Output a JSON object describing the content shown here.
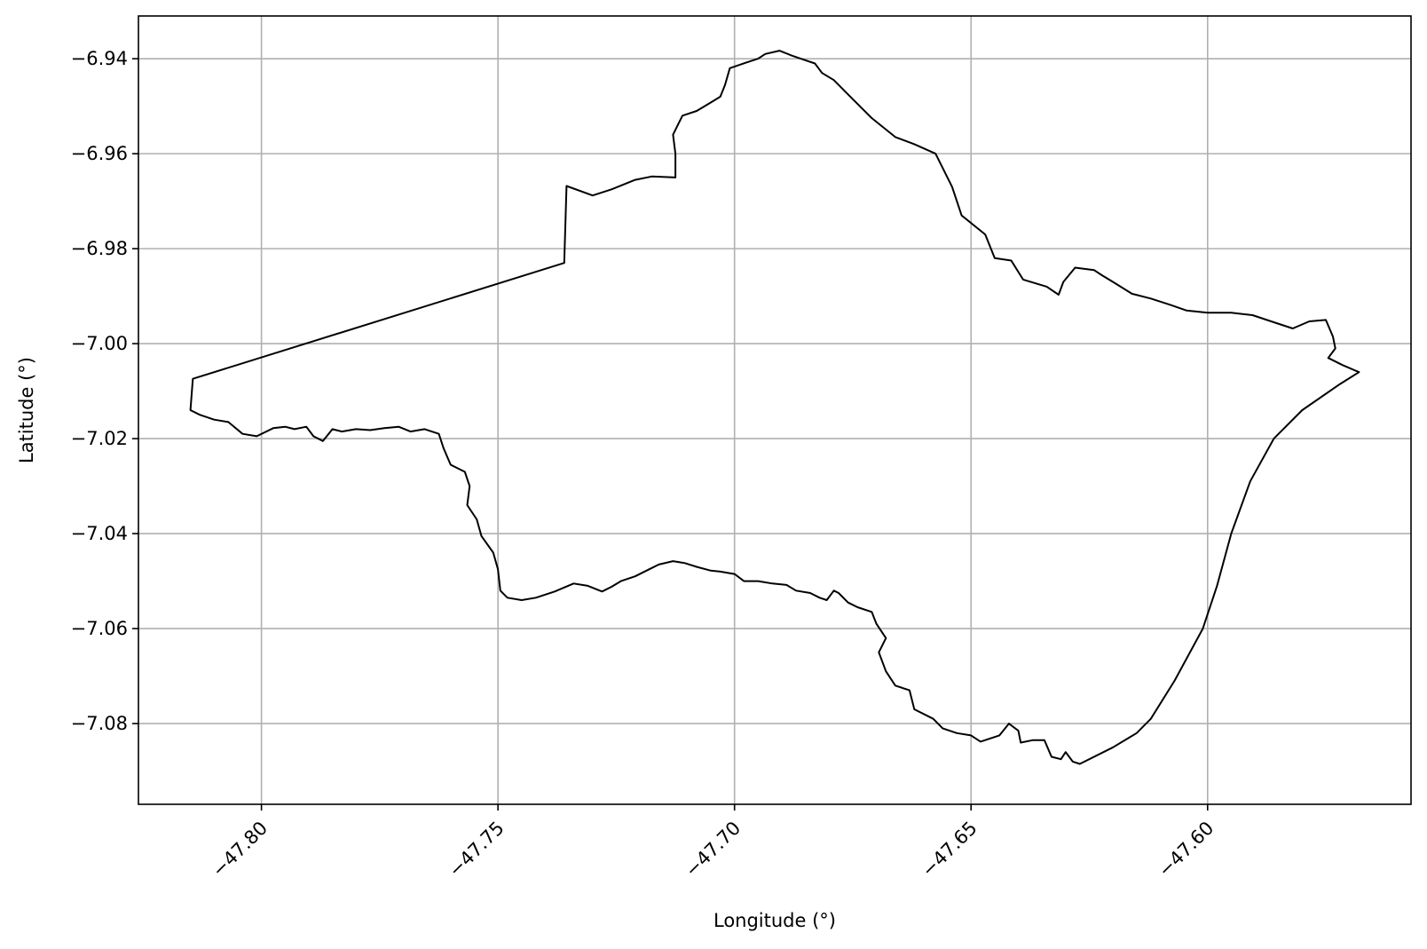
{
  "chart_data": {
    "type": "line",
    "xlabel": "Longitude (°)",
    "ylabel": "Latitude (°)",
    "xlim": [
      -47.826,
      -47.557
    ],
    "ylim": [
      -7.097,
      -6.931
    ],
    "x_ticks": [
      -47.8,
      -47.75,
      -47.7,
      -47.65,
      -47.6
    ],
    "x_tick_labels": [
      "−47.80",
      "−47.75",
      "−47.70",
      "−47.65",
      "−47.60"
    ],
    "y_ticks": [
      -6.94,
      -6.96,
      -6.98,
      -7.0,
      -7.02,
      -7.04,
      -7.06,
      -7.08
    ],
    "y_tick_labels": [
      "−6.94",
      "−6.96",
      "−6.98",
      "−7.00",
      "−7.02",
      "−7.04",
      "−7.06",
      "−7.08"
    ],
    "grid": true,
    "line_color": "#000000",
    "grid_color": "#b0b0b0",
    "boundary": [
      [
        -47.8145,
        -7.0074
      ],
      [
        -47.736,
        -6.983
      ],
      [
        -47.7355,
        -6.9668
      ],
      [
        -47.73,
        -6.9688
      ],
      [
        -47.726,
        -6.9675
      ],
      [
        -47.721,
        -6.9655
      ],
      [
        -47.7175,
        -6.9648
      ],
      [
        -47.7125,
        -6.965
      ],
      [
        -47.7125,
        -6.96
      ],
      [
        -47.713,
        -6.956
      ],
      [
        -47.711,
        -6.952
      ],
      [
        -47.708,
        -6.951
      ],
      [
        -47.7055,
        -6.9495
      ],
      [
        -47.703,
        -6.948
      ],
      [
        -47.702,
        -6.9455
      ],
      [
        -47.701,
        -6.942
      ],
      [
        -47.6975,
        -6.9408
      ],
      [
        -47.695,
        -6.94
      ],
      [
        -47.6935,
        -6.939
      ],
      [
        -47.6905,
        -6.9383
      ],
      [
        -47.688,
        -6.9393
      ],
      [
        -47.686,
        -6.94
      ],
      [
        -47.683,
        -6.941
      ],
      [
        -47.6815,
        -6.943
      ],
      [
        -47.679,
        -6.9445
      ],
      [
        -47.676,
        -6.9475
      ],
      [
        -47.671,
        -6.9525
      ],
      [
        -47.666,
        -6.9565
      ],
      [
        -47.662,
        -6.958
      ],
      [
        -47.6575,
        -6.96
      ],
      [
        -47.654,
        -6.967
      ],
      [
        -47.652,
        -6.973
      ],
      [
        -47.647,
        -6.977
      ],
      [
        -47.645,
        -6.982
      ],
      [
        -47.6415,
        -6.9825
      ],
      [
        -47.639,
        -6.9865
      ],
      [
        -47.634,
        -6.988
      ],
      [
        -47.6315,
        -6.9897
      ],
      [
        -47.6305,
        -6.987
      ],
      [
        -47.628,
        -6.984
      ],
      [
        -47.624,
        -6.9845
      ],
      [
        -47.6225,
        -6.9855
      ],
      [
        -47.62,
        -6.987
      ],
      [
        -47.616,
        -6.9895
      ],
      [
        -47.612,
        -6.9905
      ],
      [
        -47.608,
        -6.9918
      ],
      [
        -47.6045,
        -6.993
      ],
      [
        -47.6,
        -6.9935
      ],
      [
        -47.595,
        -6.9935
      ],
      [
        -47.5905,
        -6.994
      ],
      [
        -47.586,
        -6.9955
      ],
      [
        -47.582,
        -6.9968
      ],
      [
        -47.5785,
        -6.9953
      ],
      [
        -47.575,
        -6.995
      ],
      [
        -47.5735,
        -6.9985
      ],
      [
        -47.573,
        -7.001
      ],
      [
        -47.5745,
        -7.003
      ],
      [
        -47.5715,
        -7.0045
      ],
      [
        -47.568,
        -7.006
      ],
      [
        -47.572,
        -7.0085
      ],
      [
        -47.58,
        -7.014
      ],
      [
        -47.586,
        -7.02
      ],
      [
        -47.591,
        -7.029
      ],
      [
        -47.595,
        -7.04
      ],
      [
        -47.598,
        -7.051
      ],
      [
        -47.601,
        -7.06
      ],
      [
        -47.607,
        -7.071
      ],
      [
        -47.612,
        -7.079
      ],
      [
        -47.615,
        -7.082
      ],
      [
        -47.62,
        -7.085
      ],
      [
        -47.627,
        -7.0885
      ],
      [
        -47.6285,
        -7.088
      ],
      [
        -47.63,
        -7.086
      ],
      [
        -47.631,
        -7.0875
      ],
      [
        -47.633,
        -7.087
      ],
      [
        -47.6345,
        -7.0835
      ],
      [
        -47.637,
        -7.0835
      ],
      [
        -47.6395,
        -7.084
      ],
      [
        -47.64,
        -7.0815
      ],
      [
        -47.642,
        -7.08
      ],
      [
        -47.644,
        -7.0825
      ],
      [
        -47.648,
        -7.0838
      ],
      [
        -47.65,
        -7.0825
      ],
      [
        -47.653,
        -7.082
      ],
      [
        -47.656,
        -7.081
      ],
      [
        -47.658,
        -7.079
      ],
      [
        -47.662,
        -7.077
      ],
      [
        -47.663,
        -7.073
      ],
      [
        -47.666,
        -7.072
      ],
      [
        -47.668,
        -7.069
      ],
      [
        -47.6695,
        -7.065
      ],
      [
        -47.668,
        -7.062
      ],
      [
        -47.67,
        -7.059
      ],
      [
        -47.671,
        -7.0565
      ],
      [
        -47.674,
        -7.0555
      ],
      [
        -47.676,
        -7.0545
      ],
      [
        -47.678,
        -7.0525
      ],
      [
        -47.679,
        -7.052
      ],
      [
        -47.6805,
        -7.054
      ],
      [
        -47.682,
        -7.0535
      ],
      [
        -47.684,
        -7.0525
      ],
      [
        -47.687,
        -7.052
      ],
      [
        -47.689,
        -7.0508
      ],
      [
        -47.692,
        -7.0505
      ],
      [
        -47.695,
        -7.05
      ],
      [
        -47.698,
        -7.05
      ],
      [
        -47.7,
        -7.0485
      ],
      [
        -47.703,
        -7.048
      ],
      [
        -47.705,
        -7.0478
      ],
      [
        -47.708,
        -7.047
      ],
      [
        -47.7105,
        -7.0462
      ],
      [
        -47.713,
        -7.0458
      ],
      [
        -47.716,
        -7.0465
      ],
      [
        -47.718,
        -7.0475
      ],
      [
        -47.721,
        -7.049
      ],
      [
        -47.724,
        -7.05
      ],
      [
        -47.726,
        -7.0512
      ],
      [
        -47.728,
        -7.0522
      ],
      [
        -47.731,
        -7.051
      ],
      [
        -47.734,
        -7.0505
      ],
      [
        -47.738,
        -7.0522
      ],
      [
        -47.742,
        -7.0535
      ],
      [
        -47.745,
        -7.054
      ],
      [
        -47.748,
        -7.0535
      ],
      [
        -47.7495,
        -7.052
      ],
      [
        -47.75,
        -7.0475
      ],
      [
        -47.751,
        -7.044
      ],
      [
        -47.7535,
        -7.0405
      ],
      [
        -47.7545,
        -7.037
      ],
      [
        -47.7565,
        -7.034
      ],
      [
        -47.756,
        -7.03
      ],
      [
        -47.757,
        -7.027
      ],
      [
        -47.76,
        -7.0255
      ],
      [
        -47.7615,
        -7.022
      ],
      [
        -47.7625,
        -7.019
      ],
      [
        -47.7655,
        -7.018
      ],
      [
        -47.7685,
        -7.0185
      ],
      [
        -47.771,
        -7.0175
      ],
      [
        -47.774,
        -7.0178
      ],
      [
        -47.777,
        -7.0182
      ],
      [
        -47.78,
        -7.018
      ],
      [
        -47.783,
        -7.0185
      ],
      [
        -47.785,
        -7.018
      ],
      [
        -47.787,
        -7.0205
      ],
      [
        -47.789,
        -7.0195
      ],
      [
        -47.7905,
        -7.0175
      ],
      [
        -47.793,
        -7.018
      ],
      [
        -47.795,
        -7.0175
      ],
      [
        -47.7975,
        -7.0178
      ],
      [
        -47.801,
        -7.0195
      ],
      [
        -47.804,
        -7.019
      ],
      [
        -47.807,
        -7.0165
      ],
      [
        -47.81,
        -7.016
      ],
      [
        -47.813,
        -7.015
      ],
      [
        -47.815,
        -7.014
      ],
      [
        -47.8145,
        -7.0074
      ]
    ]
  }
}
